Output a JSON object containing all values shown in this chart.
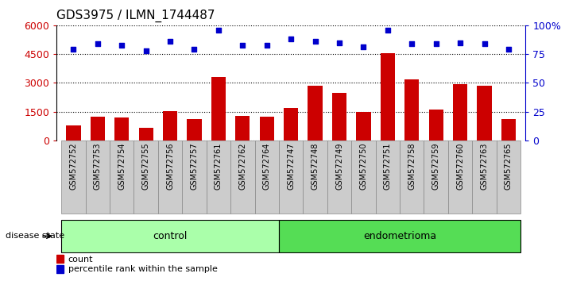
{
  "title": "GDS3975 / ILMN_1744487",
  "samples": [
    "GSM572752",
    "GSM572753",
    "GSM572754",
    "GSM572755",
    "GSM572756",
    "GSM572757",
    "GSM572761",
    "GSM572762",
    "GSM572764",
    "GSM572747",
    "GSM572748",
    "GSM572749",
    "GSM572750",
    "GSM572751",
    "GSM572758",
    "GSM572759",
    "GSM572760",
    "GSM572763",
    "GSM572765"
  ],
  "counts": [
    800,
    1250,
    1200,
    650,
    1520,
    1100,
    3300,
    1300,
    1250,
    1700,
    2850,
    2500,
    1480,
    4550,
    3200,
    1600,
    2950,
    2850,
    1100
  ],
  "percentiles": [
    79,
    84,
    83,
    78,
    86,
    79,
    96,
    83,
    83,
    88,
    86,
    85,
    81,
    96,
    84,
    84,
    85,
    84,
    79
  ],
  "control_count": 9,
  "endometrioma_count": 10,
  "bar_color": "#cc0000",
  "dot_color": "#0000cc",
  "ylim_left": [
    0,
    6000
  ],
  "ylim_right": [
    0,
    100
  ],
  "yticks_left": [
    0,
    1500,
    3000,
    4500,
    6000
  ],
  "yticks_right": [
    0,
    25,
    50,
    75,
    100
  ],
  "ytick_labels_right": [
    "0",
    "25",
    "50",
    "75",
    "100%"
  ],
  "control_color": "#aaffaa",
  "endometrioma_color": "#55dd55",
  "label_color_left": "#cc0000",
  "label_color_right": "#0000cc",
  "legend_count_label": "count",
  "legend_pct_label": "percentile rank within the sample",
  "disease_state_label": "disease state",
  "control_label": "control",
  "endometrioma_label": "endometrioma",
  "xtick_bg_color": "#cccccc",
  "xtick_border_color": "#888888"
}
